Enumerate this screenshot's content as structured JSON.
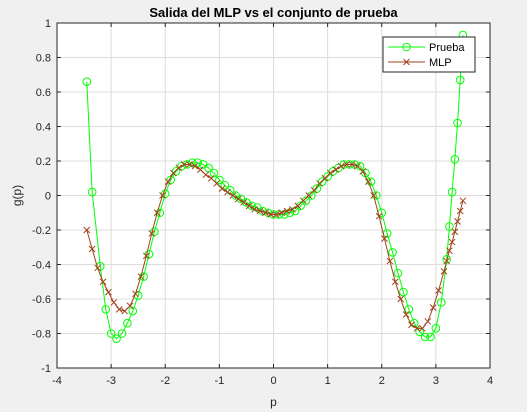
{
  "chart_data": {
    "type": "line",
    "title": "Salida del MLP vs el conjunto de prueba",
    "xlabel": "p",
    "ylabel": "g(p)",
    "xlim": [
      -4,
      4
    ],
    "ylim": [
      -1,
      1
    ],
    "xticks": [
      -4,
      -3,
      -2,
      -1,
      0,
      1,
      2,
      3,
      4
    ],
    "yticks": [
      -1,
      -0.8,
      -0.6,
      -0.4,
      -0.2,
      0,
      0.2,
      0.4,
      0.6,
      0.8,
      1
    ],
    "xtick_labels": [
      "-4",
      "-3",
      "-2",
      "-1",
      "0",
      "1",
      "2",
      "3",
      "4"
    ],
    "ytick_labels": [
      "-1",
      "-0.8",
      "-0.6",
      "-0.4",
      "-0.2",
      "0",
      "0.2",
      "0.4",
      "0.6",
      "0.8",
      "1"
    ],
    "grid": true,
    "legend_position": "top-right",
    "series": [
      {
        "name": "Prueba",
        "color": "#00ff00",
        "marker": "circle",
        "x": [
          -3.45,
          -3.35,
          -3.2,
          -3.1,
          -3.0,
          -2.9,
          -2.8,
          -2.7,
          -2.6,
          -2.5,
          -2.4,
          -2.3,
          -2.2,
          -2.1,
          -2.0,
          -1.9,
          -1.8,
          -1.7,
          -1.6,
          -1.5,
          -1.4,
          -1.3,
          -1.2,
          -1.1,
          -1.0,
          -0.9,
          -0.8,
          -0.7,
          -0.6,
          -0.5,
          -0.4,
          -0.3,
          -0.2,
          -0.1,
          0.0,
          0.1,
          0.2,
          0.3,
          0.4,
          0.5,
          0.6,
          0.7,
          0.8,
          0.9,
          1.0,
          1.1,
          1.2,
          1.3,
          1.4,
          1.5,
          1.6,
          1.7,
          1.8,
          1.9,
          2.0,
          2.1,
          2.2,
          2.3,
          2.4,
          2.5,
          2.6,
          2.7,
          2.8,
          2.9,
          3.0,
          3.1,
          3.2,
          3.25,
          3.3,
          3.35,
          3.4,
          3.45,
          3.5
        ],
        "y": [
          0.66,
          0.02,
          -0.41,
          -0.66,
          -0.8,
          -0.83,
          -0.8,
          -0.74,
          -0.67,
          -0.58,
          -0.47,
          -0.34,
          -0.21,
          -0.1,
          0.01,
          0.09,
          0.14,
          0.17,
          0.18,
          0.19,
          0.19,
          0.18,
          0.16,
          0.13,
          0.09,
          0.06,
          0.03,
          0.0,
          -0.02,
          -0.04,
          -0.06,
          -0.07,
          -0.09,
          -0.1,
          -0.11,
          -0.11,
          -0.11,
          -0.1,
          -0.09,
          -0.06,
          -0.03,
          0.0,
          0.04,
          0.08,
          0.11,
          0.14,
          0.16,
          0.18,
          0.18,
          0.18,
          0.17,
          0.13,
          0.08,
          0.0,
          -0.1,
          -0.22,
          -0.33,
          -0.45,
          -0.56,
          -0.66,
          -0.74,
          -0.79,
          -0.82,
          -0.82,
          -0.77,
          -0.62,
          -0.37,
          -0.18,
          0.02,
          0.21,
          0.42,
          0.67,
          0.93
        ]
      },
      {
        "name": "MLP",
        "color": "#a0421c",
        "marker": "x",
        "x": [
          -3.45,
          -3.35,
          -3.25,
          -3.15,
          -3.05,
          -2.95,
          -2.85,
          -2.75,
          -2.65,
          -2.55,
          -2.45,
          -2.35,
          -2.25,
          -2.15,
          -2.05,
          -1.95,
          -1.85,
          -1.75,
          -1.65,
          -1.55,
          -1.45,
          -1.35,
          -1.25,
          -1.15,
          -1.05,
          -0.95,
          -0.85,
          -0.75,
          -0.65,
          -0.55,
          -0.45,
          -0.35,
          -0.25,
          -0.15,
          -0.05,
          0.05,
          0.15,
          0.25,
          0.35,
          0.45,
          0.55,
          0.65,
          0.75,
          0.85,
          0.95,
          1.05,
          1.15,
          1.25,
          1.35,
          1.45,
          1.55,
          1.65,
          1.75,
          1.85,
          1.95,
          2.05,
          2.15,
          2.25,
          2.35,
          2.45,
          2.55,
          2.65,
          2.75,
          2.85,
          2.95,
          3.05,
          3.15,
          3.2,
          3.25,
          3.3,
          3.35,
          3.4,
          3.45,
          3.5
        ],
        "y": [
          -0.2,
          -0.31,
          -0.42,
          -0.5,
          -0.56,
          -0.62,
          -0.66,
          -0.67,
          -0.64,
          -0.57,
          -0.47,
          -0.35,
          -0.22,
          -0.1,
          0.0,
          0.08,
          0.13,
          0.16,
          0.18,
          0.18,
          0.17,
          0.15,
          0.12,
          0.1,
          0.07,
          0.04,
          0.02,
          0.0,
          -0.02,
          -0.04,
          -0.06,
          -0.08,
          -0.09,
          -0.1,
          -0.11,
          -0.11,
          -0.1,
          -0.09,
          -0.08,
          -0.06,
          -0.03,
          0.0,
          0.03,
          0.07,
          0.1,
          0.13,
          0.15,
          0.17,
          0.18,
          0.18,
          0.17,
          0.14,
          0.08,
          0.0,
          -0.12,
          -0.25,
          -0.38,
          -0.5,
          -0.6,
          -0.69,
          -0.75,
          -0.77,
          -0.77,
          -0.73,
          -0.65,
          -0.55,
          -0.44,
          -0.38,
          -0.32,
          -0.27,
          -0.21,
          -0.15,
          -0.09,
          -0.03
        ]
      }
    ]
  }
}
